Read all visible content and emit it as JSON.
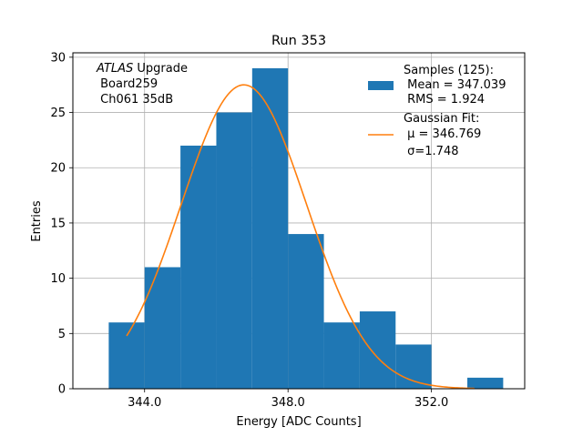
{
  "chart_data": {
    "type": "bar",
    "title": "Run 353",
    "xlabel": "Energy [ADC Counts]",
    "ylabel": "Entries",
    "xlim": [
      342.0,
      354.6
    ],
    "ylim": [
      0,
      30.4
    ],
    "grid": true,
    "x_ticks": [
      344.0,
      348.0,
      352.0
    ],
    "x_tick_labels": [
      "344.0",
      "348.0",
      "352.0"
    ],
    "y_ticks": [
      0,
      5,
      10,
      15,
      20,
      25,
      30
    ],
    "y_tick_labels": [
      "0",
      "5",
      "10",
      "15",
      "20",
      "25",
      "30"
    ],
    "bar_color": "#1f77b4",
    "fit_color": "#ff7f0e",
    "histogram": {
      "name": "Samples (125):",
      "bin_edges": [
        343.0,
        344.0,
        345.0,
        346.0,
        347.0,
        348.0,
        349.0,
        350.0,
        351.0,
        352.0,
        353.0,
        354.0
      ],
      "counts": [
        6,
        11,
        22,
        25,
        29,
        14,
        6,
        7,
        4,
        0,
        1
      ]
    },
    "fit": {
      "name": "Gaussian Fit:",
      "mu": 346.769,
      "sigma": 1.748,
      "x_start": 343.5,
      "x_end": 353.2,
      "peak": 27.5
    },
    "annotation": {
      "italic": "ATLAS",
      "rest": " Upgrade",
      "line2": " Board259",
      "line3": " Ch061 35dB"
    },
    "legend": {
      "placement": "top-right",
      "samples_title": "Samples (125):",
      "samples_mean": " Mean = 347.039",
      "samples_rms": " RMS = 1.924",
      "fit_title": "Gaussian Fit:",
      "fit_mu": " μ = 346.769",
      "fit_sigma": " σ=1.748"
    }
  }
}
